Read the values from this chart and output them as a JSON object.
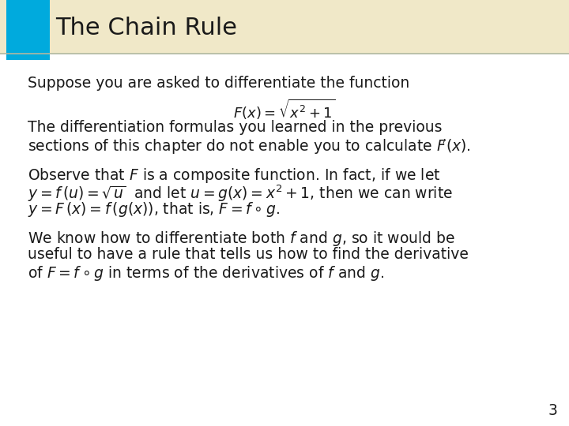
{
  "title": "The Chain Rule",
  "title_color": "#1a1a1a",
  "title_bg_color": "#f0e8c8",
  "title_accent_color": "#00aadd",
  "slide_bg_color": "#ffffff",
  "border_color": "#b0b8a0",
  "text_color": "#1a1a1a",
  "page_number": "3",
  "para1": "Suppose you are asked to differentiate the function",
  "formula1": "$F(x) = \\sqrt{x^2 + 1}$",
  "para2_line1": "The differentiation formulas you learned in the previous",
  "para2_line2": "sections of this chapter do not enable you to calculate $F\\!'(x)$.",
  "para3_line1": "Observe that $F$ is a composite function. In fact, if we let",
  "para3_line2": "$y = f\\,(u) =\\sqrt{u}$  and let $u = g(x) = x^2 + 1$, then we can write",
  "para3_line3": "$y = F\\,(x) = f\\,(g(x))$, that is, $F = f \\circ g$.",
  "para4_line1": "We know how to differentiate both $f$ and $g$, so it would be",
  "para4_line2": "useful to have a rule that tells us how to find the derivative",
  "para4_line3": "of $F = f \\circ g$ in terms of the derivatives of $f$ and $g$."
}
